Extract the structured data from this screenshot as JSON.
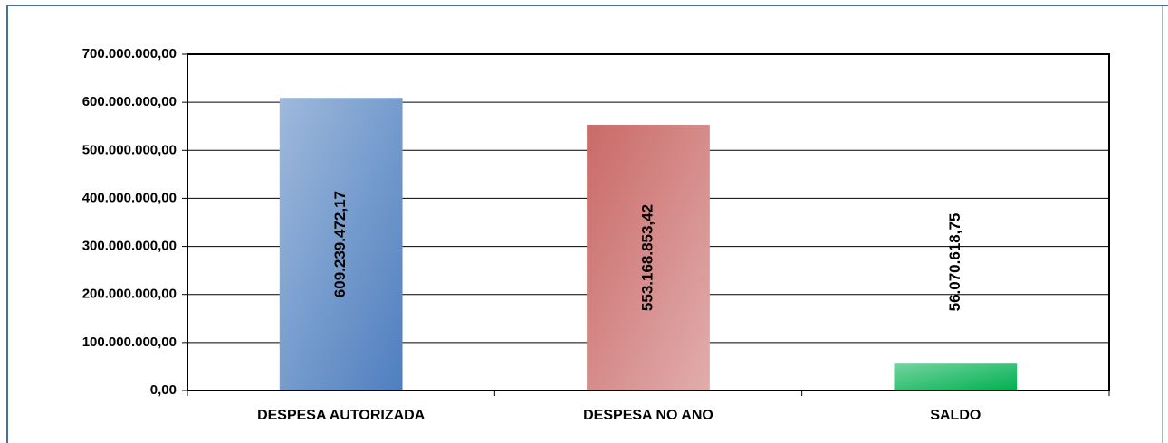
{
  "chart_data": {
    "type": "bar",
    "categories": [
      "DESPESA AUTORIZADA",
      "DESPESA NO ANO",
      "SALDO"
    ],
    "values": [
      609239472.17,
      553168853.42,
      56070618.75
    ],
    "value_labels": [
      "609.239.472,17",
      "553.168.853,42",
      "56.070.618,75"
    ],
    "colors": [
      "#4f7fbf",
      "#c96a68",
      "#00b050"
    ],
    "ylim": [
      0,
      700000000
    ],
    "yticks": [
      {
        "value": 0,
        "label": "0,00"
      },
      {
        "value": 100000000,
        "label": "100.000.000,00"
      },
      {
        "value": 200000000,
        "label": "200.000.000,00"
      },
      {
        "value": 300000000,
        "label": "300.000.000,00"
      },
      {
        "value": 400000000,
        "label": "400.000.000,00"
      },
      {
        "value": 500000000,
        "label": "500.000.000,00"
      },
      {
        "value": 600000000,
        "label": "600.000.000,00"
      },
      {
        "value": 700000000,
        "label": "700.000.000,00"
      }
    ],
    "grid": true
  }
}
